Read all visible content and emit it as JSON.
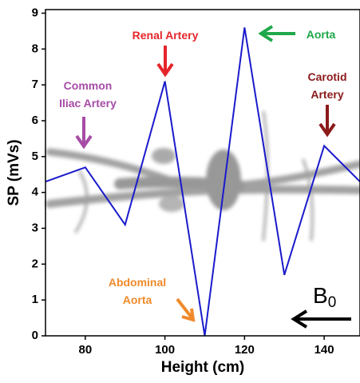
{
  "chart_data": {
    "type": "line",
    "x_label": "Height (cm)",
    "y_label": "SP (mVs)",
    "x": [
      70,
      80,
      90,
      100,
      110,
      120,
      130,
      140,
      149
    ],
    "series": [
      {
        "color": "#1a1acc",
        "values": [
          4.3,
          4.7,
          3.1,
          7.1,
          0,
          8.6,
          1.7,
          5.3,
          4.3
        ]
      }
    ],
    "xlim": [
      70,
      149
    ],
    "ylim": [
      0,
      9.1
    ],
    "xticks": [
      80,
      100,
      120,
      140
    ],
    "yticks": [
      0,
      1,
      2,
      3,
      4,
      5,
      6,
      7,
      8,
      9
    ],
    "annotations": [
      {
        "lines": [
          "Common",
          "Iliac Artery"
        ],
        "color": "#a64ca6"
      },
      {
        "lines": [
          "Renal Artery"
        ],
        "color": "#e4262b"
      },
      {
        "lines": [
          "Aorta"
        ],
        "color": "#1fa84a"
      },
      {
        "lines": [
          "Carotid",
          "Artery"
        ],
        "color": "#8b1a1a"
      },
      {
        "lines": [
          "Abdominal",
          "Aorta"
        ],
        "color": "#f08a2a"
      }
    ],
    "field_label": {
      "text": "B",
      "subscript": "0"
    }
  }
}
